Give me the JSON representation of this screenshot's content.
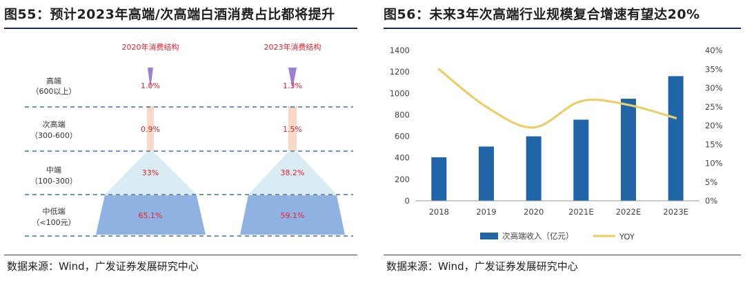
{
  "left": {
    "title": "图55：预计2023年高端/次高端白酒消费占比都将提升",
    "source": "数据来源：Wind，广发证券发展研究中心",
    "chart_data": {
      "type": "pyramid",
      "columns": [
        {
          "title": "2020年消费结构",
          "values": {
            "high": "1.0%",
            "subhigh": "0.9%",
            "mid": "33%",
            "lowmid": "65.1%"
          }
        },
        {
          "title": "2023年消费结构",
          "values": {
            "high": "1.3%",
            "subhigh": "1.5%",
            "mid": "38.2%",
            "lowmid": "59.1%"
          }
        }
      ],
      "tiers": [
        {
          "key": "high",
          "name": "高端",
          "range": "（600以上）",
          "color": "#9b7fd0"
        },
        {
          "key": "subhigh",
          "name": "次高端",
          "range": "（300-600）",
          "color": "#f8d9c8"
        },
        {
          "key": "mid",
          "name": "中端",
          "range": "（100-300）",
          "color": "#d9ecf3"
        },
        {
          "key": "lowmid",
          "name": "中低端",
          "range": "（<100元）",
          "color": "#8fb2e3"
        }
      ]
    }
  },
  "right": {
    "title": "图56：未来3年次高端行业规模复合增速有望达20%",
    "source": "数据来源：Wind，广发证券发展研究中心",
    "chart_data": {
      "type": "bar+line",
      "categories": [
        "2018",
        "2019",
        "2020",
        "2021E",
        "2022E",
        "2023E"
      ],
      "series": [
        {
          "name": "次高端收入（亿元）",
          "type": "bar",
          "axis": "left",
          "values": [
            405,
            505,
            600,
            755,
            950,
            1160
          ],
          "color": "#1f65a8"
        },
        {
          "name": "YOY",
          "type": "line",
          "axis": "right",
          "values": [
            35.0,
            25.0,
            19.5,
            26.5,
            25.5,
            22.0
          ],
          "color": "#e8cf6a"
        }
      ],
      "y_left": {
        "min": 0,
        "max": 1400,
        "step": 200,
        "ticks": [
          "0",
          "200",
          "400",
          "600",
          "800",
          "1000",
          "1200",
          "1400"
        ]
      },
      "y_right": {
        "min": 0,
        "max": 40,
        "step": 5,
        "ticks": [
          "0%",
          "5%",
          "10%",
          "15%",
          "20%",
          "25%",
          "30%",
          "35%",
          "40%"
        ]
      },
      "legend_position": "bottom"
    }
  }
}
